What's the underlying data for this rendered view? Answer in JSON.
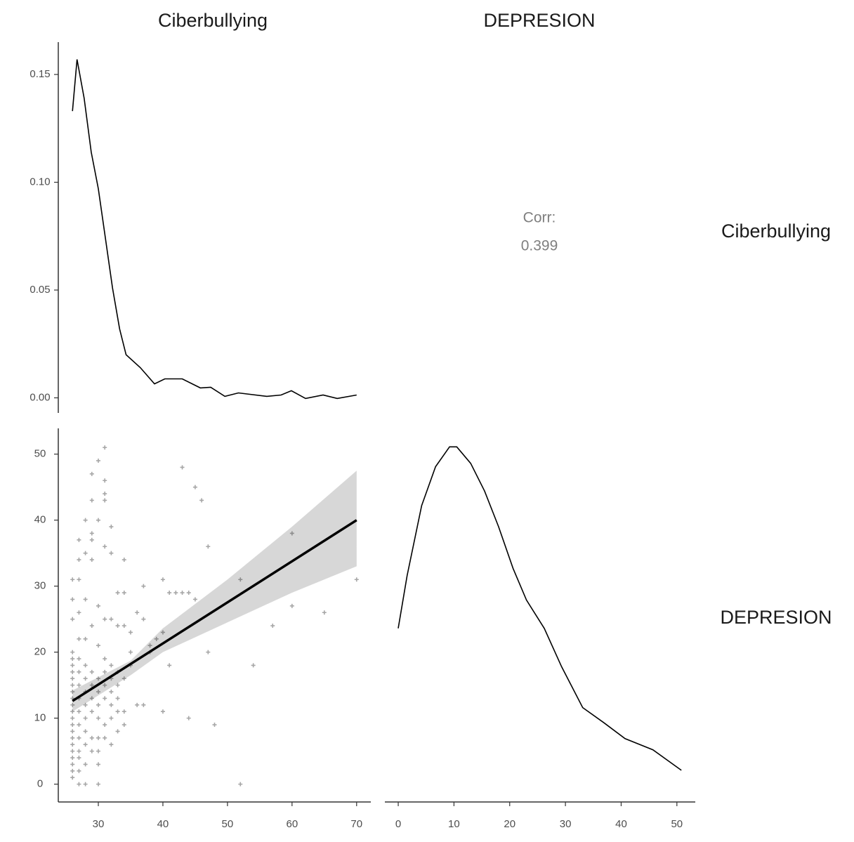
{
  "strips": {
    "columns": [
      "Ciberbullying",
      "DEPRESION"
    ],
    "rows": [
      "Ciberbullying",
      "DEPRESION"
    ]
  },
  "correlation": {
    "label": "Corr:",
    "value": 0.399
  },
  "chart_data": [
    {
      "type": "line",
      "x": [
        26,
        26.7,
        27.8,
        28.9,
        30,
        31.1,
        32.2,
        33.3,
        34.3,
        36.5,
        38.7,
        40.3,
        43,
        45.8,
        47.4,
        49.6,
        51.7,
        56.1,
        58.3,
        59.9,
        62.1,
        64.8,
        67,
        70
      ],
      "values": [
        0.133,
        0.157,
        0.139,
        0.114,
        0.097,
        0.074,
        0.051,
        0.032,
        0.02,
        0.014,
        0.0065,
        0.0088,
        0.0088,
        0.0046,
        0.0049,
        0.0007,
        0.0023,
        0.0007,
        0.0013,
        0.0033,
        -0.0003,
        0.0013,
        -0.0003,
        0.0013
      ],
      "xlim": [
        23.8,
        72.2
      ],
      "ylim": [
        -0.007,
        0.165
      ],
      "yticks": [
        {
          "value": 0,
          "label": "0.00"
        },
        {
          "value": 0.05,
          "label": "0.05"
        },
        {
          "value": 0.1,
          "label": "0.10"
        },
        {
          "value": 0.15,
          "label": "0.15"
        }
      ]
    },
    {
      "type": "scatter",
      "x": [
        31,
        30,
        29,
        31,
        31,
        31,
        29,
        28,
        30,
        32,
        29,
        29,
        27,
        28,
        27,
        29,
        31,
        32,
        34,
        43,
        45,
        46,
        47,
        60,
        70,
        52,
        40,
        37,
        41,
        42,
        43,
        44,
        45,
        33,
        34,
        36,
        37,
        31,
        32,
        33,
        34,
        35,
        40,
        39,
        38,
        41,
        47,
        54,
        57,
        60,
        65,
        48,
        44,
        40,
        36,
        37,
        52,
        30,
        28,
        27,
        26,
        27,
        26,
        27,
        26,
        27,
        28,
        26,
        26,
        26,
        26,
        27,
        26,
        26,
        26,
        26,
        26,
        27,
        26,
        26,
        26,
        26,
        26,
        27,
        26,
        26,
        26,
        26,
        26,
        26,
        27,
        27,
        27,
        27,
        27,
        27,
        27,
        28,
        28,
        28,
        28,
        28,
        28,
        28,
        28,
        28,
        29,
        29,
        29,
        29,
        29,
        29,
        29,
        30,
        30,
        30,
        30,
        30,
        30,
        30,
        30,
        31,
        31,
        31,
        31,
        31,
        31,
        32,
        32,
        32,
        32,
        32,
        33,
        33,
        33,
        33,
        33,
        34,
        35,
        35,
        38,
        30,
        32,
        34,
        34
      ],
      "values": [
        51,
        49,
        47,
        46,
        44,
        43,
        43,
        40,
        40,
        39,
        38,
        37,
        37,
        35,
        34,
        34,
        36,
        35,
        34,
        48,
        45,
        43,
        36,
        38,
        31,
        31,
        31,
        30,
        29,
        29,
        29,
        29,
        28,
        29,
        29,
        26,
        25,
        25,
        25,
        24,
        24,
        23,
        23,
        22,
        20,
        18,
        20,
        18,
        24,
        27,
        26,
        9,
        10,
        11,
        12,
        12,
        0,
        0,
        0,
        0,
        31,
        31,
        28,
        26,
        25,
        22,
        22,
        20,
        19,
        18,
        17,
        17,
        16,
        15,
        14,
        13,
        12,
        11,
        11,
        10,
        9,
        8,
        7,
        7,
        6,
        5,
        4,
        3,
        2,
        1,
        2,
        4,
        5,
        9,
        13,
        15,
        19,
        3,
        6,
        8,
        10,
        12,
        14,
        16,
        18,
        28,
        5,
        7,
        11,
        13,
        15,
        17,
        24,
        3,
        7,
        10,
        12,
        14,
        16,
        21,
        27,
        7,
        9,
        13,
        15,
        17,
        19,
        10,
        12,
        14,
        16,
        18,
        8,
        11,
        13,
        15,
        17,
        16,
        18,
        20,
        21,
        5,
        6,
        9,
        11
      ],
      "fit": {
        "x": [
          26,
          70
        ],
        "values": [
          12.6,
          40
        ]
      },
      "band": {
        "x": [
          26,
          35,
          40,
          50,
          60,
          70
        ],
        "lower": [
          11,
          16.5,
          20,
          24.5,
          29,
          33
        ],
        "upper": [
          14.2,
          18.7,
          23.6,
          31,
          39,
          47.5
        ]
      },
      "xlim": [
        23.8,
        72.2
      ],
      "ylim": [
        -2.7,
        53.9
      ],
      "xticks": [
        30,
        40,
        50,
        60,
        70
      ],
      "yticks": [
        0,
        10,
        20,
        30,
        40,
        50
      ]
    },
    {
      "type": "line",
      "x": [
        0,
        1.6,
        4.2,
        6.7,
        9.2,
        10.5,
        13,
        15.5,
        18,
        20.6,
        23,
        26.2,
        29.3,
        33.1,
        36.9,
        40.7,
        45.7,
        50.8
      ],
      "values": [
        23.6,
        31.6,
        42.2,
        48.1,
        51.1,
        51.1,
        48.6,
        44.4,
        39,
        32.7,
        27.9,
        23.6,
        17.8,
        11.6,
        9.3,
        6.9,
        5.2,
        2.1
      ],
      "xlim": [
        -2.4,
        53.3
      ],
      "ylim": [
        -2.7,
        53.9
      ],
      "xticks": [
        0,
        10,
        20,
        30,
        40,
        50
      ]
    }
  ]
}
